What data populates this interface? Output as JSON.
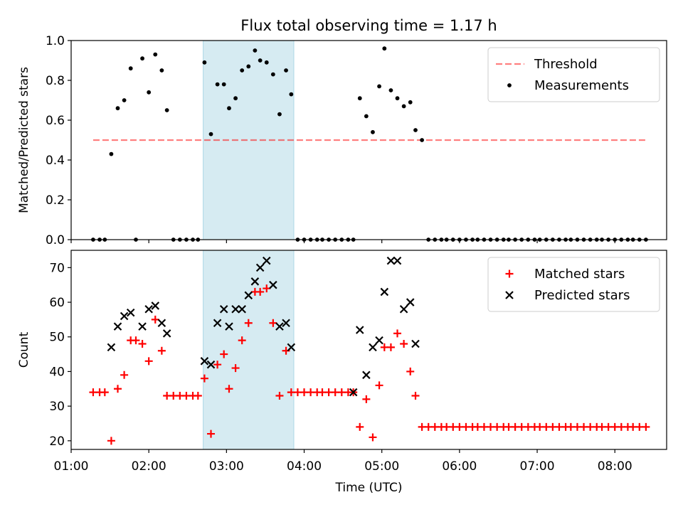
{
  "chart_data": [
    {
      "type": "scatter",
      "title": "Flux total observing time = 1.17 h",
      "xlabel": "",
      "ylabel": "Matched/Predicted stars",
      "xlim": [
        "01:00",
        "08:40"
      ],
      "ylim": [
        0,
        1
      ],
      "yticks": [
        "0.0",
        "0.2",
        "0.4",
        "0.6",
        "0.8",
        "1.0"
      ],
      "shaded_region": {
        "start": "02:42",
        "end": "03:52",
        "color": "#add8e6"
      },
      "threshold": {
        "label": "Threshold",
        "value": 0.5,
        "start": "01:17",
        "end": "08:24",
        "color": "#ff0000",
        "style": "dashed"
      },
      "legend_position": "top-right",
      "series": [
        {
          "name": "Measurements",
          "color": "#000000",
          "marker": "dot",
          "points": [
            [
              "01:17",
              0.0
            ],
            [
              "01:22",
              0.0
            ],
            [
              "01:26",
              0.0
            ],
            [
              "01:31",
              0.43
            ],
            [
              "01:36",
              0.66
            ],
            [
              "01:41",
              0.7
            ],
            [
              "01:46",
              0.86
            ],
            [
              "01:50",
              0.0
            ],
            [
              "01:55",
              0.91
            ],
            [
              "02:00",
              0.74
            ],
            [
              "02:05",
              0.93
            ],
            [
              "02:10",
              0.85
            ],
            [
              "02:14",
              0.65
            ],
            [
              "02:19",
              0.0
            ],
            [
              "02:24",
              0.0
            ],
            [
              "02:29",
              0.0
            ],
            [
              "02:34",
              0.0
            ],
            [
              "02:38",
              0.0
            ],
            [
              "02:43",
              0.89
            ],
            [
              "02:48",
              0.53
            ],
            [
              "02:53",
              0.78
            ],
            [
              "02:58",
              0.78
            ],
            [
              "03:02",
              0.66
            ],
            [
              "03:07",
              0.71
            ],
            [
              "03:12",
              0.85
            ],
            [
              "03:17",
              0.87
            ],
            [
              "03:22",
              0.95
            ],
            [
              "03:26",
              0.9
            ],
            [
              "03:31",
              0.89
            ],
            [
              "03:36",
              0.83
            ],
            [
              "03:41",
              0.63
            ],
            [
              "03:46",
              0.85
            ],
            [
              "03:50",
              0.73
            ],
            [
              "03:55",
              0.0
            ],
            [
              "04:00",
              0.0
            ],
            [
              "04:05",
              0.0
            ],
            [
              "04:10",
              0.0
            ],
            [
              "04:14",
              0.0
            ],
            [
              "04:19",
              0.0
            ],
            [
              "04:24",
              0.0
            ],
            [
              "04:29",
              0.0
            ],
            [
              "04:34",
              0.0
            ],
            [
              "04:38",
              0.0
            ],
            [
              "04:43",
              0.71
            ],
            [
              "04:48",
              0.62
            ],
            [
              "04:53",
              0.54
            ],
            [
              "04:58",
              0.77
            ],
            [
              "05:02",
              0.96
            ],
            [
              "05:07",
              0.75
            ],
            [
              "05:12",
              0.71
            ],
            [
              "05:17",
              0.67
            ],
            [
              "05:22",
              0.69
            ],
            [
              "05:26",
              0.55
            ],
            [
              "05:31",
              0.5
            ],
            [
              "05:36",
              0.0
            ],
            [
              "05:41",
              0.0
            ],
            [
              "05:46",
              0.0
            ],
            [
              "05:50",
              0.0
            ],
            [
              "05:55",
              0.0
            ],
            [
              "06:00",
              0.0
            ],
            [
              "06:05",
              0.0
            ],
            [
              "06:10",
              0.0
            ],
            [
              "06:14",
              0.0
            ],
            [
              "06:19",
              0.0
            ],
            [
              "06:24",
              0.0
            ],
            [
              "06:29",
              0.0
            ],
            [
              "06:34",
              0.0
            ],
            [
              "06:38",
              0.0
            ],
            [
              "06:43",
              0.0
            ],
            [
              "06:48",
              0.0
            ],
            [
              "06:53",
              0.0
            ],
            [
              "06:58",
              0.0
            ],
            [
              "07:02",
              0.0
            ],
            [
              "07:07",
              0.0
            ],
            [
              "07:12",
              0.0
            ],
            [
              "07:17",
              0.0
            ],
            [
              "07:22",
              0.0
            ],
            [
              "07:26",
              0.0
            ],
            [
              "07:31",
              0.0
            ],
            [
              "07:36",
              0.0
            ],
            [
              "07:41",
              0.0
            ],
            [
              "07:46",
              0.0
            ],
            [
              "07:50",
              0.0
            ],
            [
              "07:55",
              0.0
            ],
            [
              "08:00",
              0.0
            ],
            [
              "08:05",
              0.0
            ],
            [
              "08:10",
              0.0
            ],
            [
              "08:14",
              0.0
            ],
            [
              "08:19",
              0.0
            ],
            [
              "08:24",
              0.0
            ]
          ]
        }
      ]
    },
    {
      "type": "scatter",
      "title": "",
      "xlabel": "Time (UTC)",
      "ylabel": "Count",
      "xlim": [
        "01:00",
        "08:40"
      ],
      "ylim": [
        17.5,
        75
      ],
      "xticks": [
        "01:00",
        "02:00",
        "03:00",
        "04:00",
        "05:00",
        "06:00",
        "07:00",
        "08:00"
      ],
      "yticks": [
        "20",
        "30",
        "40",
        "50",
        "60",
        "70"
      ],
      "shaded_region": {
        "start": "02:42",
        "end": "03:52",
        "color": "#add8e6"
      },
      "legend_position": "top-right",
      "series": [
        {
          "name": "Matched stars",
          "color": "#ff0000",
          "marker": "plus",
          "points": [
            [
              "01:17",
              34
            ],
            [
              "01:22",
              34
            ],
            [
              "01:26",
              34
            ],
            [
              "01:31",
              20
            ],
            [
              "01:36",
              35
            ],
            [
              "01:41",
              39
            ],
            [
              "01:46",
              49
            ],
            [
              "01:50",
              49
            ],
            [
              "01:55",
              48
            ],
            [
              "02:00",
              43
            ],
            [
              "02:05",
              55
            ],
            [
              "02:10",
              46
            ],
            [
              "02:14",
              33
            ],
            [
              "02:19",
              33
            ],
            [
              "02:24",
              33
            ],
            [
              "02:29",
              33
            ],
            [
              "02:34",
              33
            ],
            [
              "02:38",
              33
            ],
            [
              "02:43",
              38
            ],
            [
              "02:48",
              22
            ],
            [
              "02:53",
              42
            ],
            [
              "02:58",
              45
            ],
            [
              "03:02",
              35
            ],
            [
              "03:07",
              41
            ],
            [
              "03:12",
              49
            ],
            [
              "03:17",
              54
            ],
            [
              "03:22",
              63
            ],
            [
              "03:26",
              63
            ],
            [
              "03:31",
              64
            ],
            [
              "03:36",
              54
            ],
            [
              "03:41",
              33
            ],
            [
              "03:46",
              46
            ],
            [
              "03:50",
              34
            ],
            [
              "03:55",
              34
            ],
            [
              "04:00",
              34
            ],
            [
              "04:05",
              34
            ],
            [
              "04:10",
              34
            ],
            [
              "04:14",
              34
            ],
            [
              "04:19",
              34
            ],
            [
              "04:24",
              34
            ],
            [
              "04:29",
              34
            ],
            [
              "04:34",
              34
            ],
            [
              "04:38",
              34
            ],
            [
              "04:43",
              24
            ],
            [
              "04:48",
              32
            ],
            [
              "04:53",
              21
            ],
            [
              "04:58",
              36
            ],
            [
              "05:02",
              47
            ],
            [
              "05:07",
              47
            ],
            [
              "05:12",
              51
            ],
            [
              "05:17",
              48
            ],
            [
              "05:22",
              40
            ],
            [
              "05:26",
              33
            ],
            [
              "05:31",
              24
            ],
            [
              "05:36",
              24
            ],
            [
              "05:41",
              24
            ],
            [
              "05:46",
              24
            ],
            [
              "05:50",
              24
            ],
            [
              "05:55",
              24
            ],
            [
              "06:00",
              24
            ],
            [
              "06:05",
              24
            ],
            [
              "06:10",
              24
            ],
            [
              "06:14",
              24
            ],
            [
              "06:19",
              24
            ],
            [
              "06:24",
              24
            ],
            [
              "06:29",
              24
            ],
            [
              "06:34",
              24
            ],
            [
              "06:38",
              24
            ],
            [
              "06:43",
              24
            ],
            [
              "06:48",
              24
            ],
            [
              "06:53",
              24
            ],
            [
              "06:58",
              24
            ],
            [
              "07:02",
              24
            ],
            [
              "07:07",
              24
            ],
            [
              "07:12",
              24
            ],
            [
              "07:17",
              24
            ],
            [
              "07:22",
              24
            ],
            [
              "07:26",
              24
            ],
            [
              "07:31",
              24
            ],
            [
              "07:36",
              24
            ],
            [
              "07:41",
              24
            ],
            [
              "07:46",
              24
            ],
            [
              "07:50",
              24
            ],
            [
              "07:55",
              24
            ],
            [
              "08:00",
              24
            ],
            [
              "08:05",
              24
            ],
            [
              "08:10",
              24
            ],
            [
              "08:14",
              24
            ],
            [
              "08:19",
              24
            ],
            [
              "08:24",
              24
            ]
          ]
        },
        {
          "name": "Predicted stars",
          "color": "#000000",
          "marker": "x",
          "points": [
            [
              "01:31",
              47
            ],
            [
              "01:36",
              53
            ],
            [
              "01:41",
              56
            ],
            [
              "01:46",
              57
            ],
            [
              "01:55",
              53
            ],
            [
              "02:00",
              58
            ],
            [
              "02:05",
              59
            ],
            [
              "02:10",
              54
            ],
            [
              "02:14",
              51
            ],
            [
              "02:43",
              43
            ],
            [
              "02:48",
              42
            ],
            [
              "02:53",
              54
            ],
            [
              "02:58",
              58
            ],
            [
              "03:02",
              53
            ],
            [
              "03:07",
              58
            ],
            [
              "03:12",
              58
            ],
            [
              "03:17",
              62
            ],
            [
              "03:22",
              66
            ],
            [
              "03:26",
              70
            ],
            [
              "03:31",
              72
            ],
            [
              "03:36",
              65
            ],
            [
              "03:41",
              53
            ],
            [
              "03:46",
              54
            ],
            [
              "03:50",
              47
            ],
            [
              "04:38",
              34
            ],
            [
              "04:43",
              52
            ],
            [
              "04:48",
              39
            ],
            [
              "04:53",
              47
            ],
            [
              "04:58",
              49
            ],
            [
              "05:02",
              63
            ],
            [
              "05:07",
              72
            ],
            [
              "05:12",
              72
            ],
            [
              "05:17",
              58
            ],
            [
              "05:22",
              60
            ],
            [
              "05:26",
              48
            ]
          ]
        }
      ]
    }
  ]
}
